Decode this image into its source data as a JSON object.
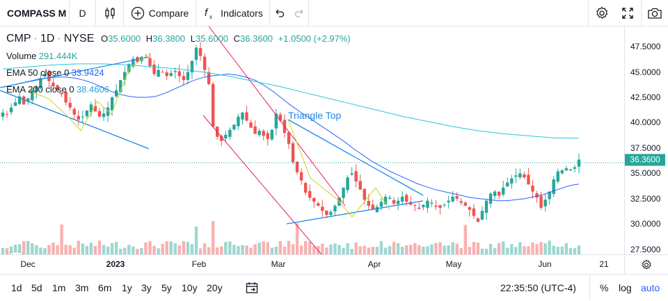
{
  "toolbar": {
    "symbol": "COMPASS M",
    "interval": "D",
    "compare_label": "Compare",
    "indicators_label": "Indicators"
  },
  "legend": {
    "symbol": "CMP",
    "interval": "1D",
    "exchange": "NYSE",
    "o_label": "O",
    "o_value": "35.6000",
    "h_label": "H",
    "h_value": "36.3800",
    "l_label": "L",
    "l_value": "35.6000",
    "c_label": "C",
    "c_value": "36.3600",
    "change": "+1.0500 (+2.97%)",
    "volume_label": "Volume",
    "volume_value": "291.444K",
    "ema50_label": "EMA 50 close 0",
    "ema50_value": "33.9424",
    "ema200_label": "EMA 200 close 0",
    "ema200_value": "38.4606"
  },
  "annotation": {
    "triangle_top": "Triangle Top"
  },
  "price_axis": {
    "labels": [
      "47.5000",
      "45.0000",
      "42.5000",
      "40.0000",
      "37.5000",
      "35.0000",
      "32.5000",
      "30.0000",
      "27.5000"
    ],
    "current_price": "36.3600"
  },
  "time_axis": {
    "labels": [
      {
        "text": "Dec",
        "bold": false
      },
      {
        "text": "2023",
        "bold": true
      },
      {
        "text": "Feb",
        "bold": false
      },
      {
        "text": "Mar",
        "bold": false
      },
      {
        "text": "Apr",
        "bold": false
      },
      {
        "text": "May",
        "bold": false
      },
      {
        "text": "Jun",
        "bold": false
      },
      {
        "text": "21",
        "bold": false
      }
    ]
  },
  "bottombar": {
    "ranges": [
      "1d",
      "5d",
      "1m",
      "3m",
      "6m",
      "1y",
      "3y",
      "5y",
      "10y",
      "20y"
    ],
    "time": "22:35:50 (UTC-4)",
    "percent": "%",
    "log": "log",
    "auto": "auto"
  },
  "colors": {
    "up": "#26a69a",
    "down": "#ef5350",
    "ema50": "#2962ff",
    "ema200": "#26c6da",
    "trendline": "#1e88e5",
    "channel": "#e91e63",
    "zigzag": "#c6d41f"
  },
  "chart_data": {
    "type": "candlestick",
    "ylim": [
      27,
      49.5
    ],
    "seed": 7,
    "closes": [
      41.0,
      40.8,
      41.5,
      42.0,
      42.6,
      41.8,
      42.4,
      43.2,
      43.6,
      44.4,
      44.8,
      44.1,
      43.6,
      43.2,
      42.8,
      42.0,
      41.5,
      40.8,
      40.3,
      40.6,
      41.2,
      41.8,
      41.1,
      40.6,
      40.9,
      41.5,
      42.5,
      43.2,
      44.2,
      45.0,
      45.8,
      46.3,
      46.0,
      46.5,
      46.4,
      45.6,
      44.8,
      45.2,
      45.0,
      44.6,
      44.9,
      45.1,
      44.6,
      44.2,
      45.0,
      46.1,
      47.4,
      46.6,
      45.2,
      43.8,
      39.6,
      38.6,
      38.2,
      38.8,
      39.3,
      39.8,
      40.6,
      41.0,
      40.2,
      39.5,
      38.9,
      39.2,
      38.7,
      38.4,
      39.3,
      40.9,
      40.2,
      39.0,
      37.9,
      36.1,
      35.1,
      34.3,
      33.1,
      32.6,
      32.2,
      31.8,
      31.3,
      30.9,
      31.2,
      31.8,
      32.6,
      33.6,
      34.6,
      35.0,
      34.2,
      33.4,
      32.4,
      31.8,
      31.4,
      31.7,
      32.2,
      32.7,
      32.6,
      32.0,
      32.3,
      32.7,
      32.2,
      31.9,
      31.8,
      31.5,
      31.9,
      32.3,
      32.1,
      31.7,
      31.6,
      31.9,
      32.3,
      32.7,
      32.5,
      32.1,
      31.8,
      31.4,
      30.8,
      30.2,
      31.3,
      32.3,
      33.0,
      33.2,
      32.8,
      33.6,
      34.1,
      34.5,
      34.8,
      35.0,
      34.6,
      33.9,
      33.2,
      32.6,
      31.6,
      32.4,
      33.2,
      34.4,
      35.2,
      35.3,
      35.5,
      35.4,
      35.6,
      36.36
    ],
    "ema50": [
      43.5,
      43.7,
      43.9,
      44.1,
      44.3,
      44.4,
      44.5,
      44.5,
      44.4,
      44.2,
      43.9,
      43.5,
      43.1,
      42.8,
      42.6,
      42.5,
      42.5,
      42.6,
      42.9,
      43.3,
      43.7,
      44.1,
      44.4,
      44.6,
      44.7,
      44.8,
      44.7,
      44.5,
      44.2,
      43.7,
      43.1,
      42.4,
      41.7,
      41.1,
      40.5,
      39.9,
      39.3,
      38.7,
      38.1,
      37.4,
      36.8,
      36.2,
      35.7,
      35.2,
      34.8,
      34.4,
      34.0,
      33.7,
      33.4,
      33.2,
      33.0,
      32.8,
      32.6,
      32.5,
      32.4,
      32.3,
      32.3,
      32.4,
      32.5,
      32.7,
      32.9,
      33.2,
      33.5,
      33.8,
      33.94
    ],
    "ema200": [
      45.3,
      45.5,
      45.7,
      45.8,
      45.8,
      45.7,
      45.5,
      45.3,
      45.0,
      44.6,
      44.1,
      43.6,
      43.0,
      42.4,
      41.8,
      41.2,
      40.6,
      40.1,
      39.6,
      39.2,
      38.9,
      38.7,
      38.5,
      38.46
    ],
    "volume_max": 1.0
  }
}
